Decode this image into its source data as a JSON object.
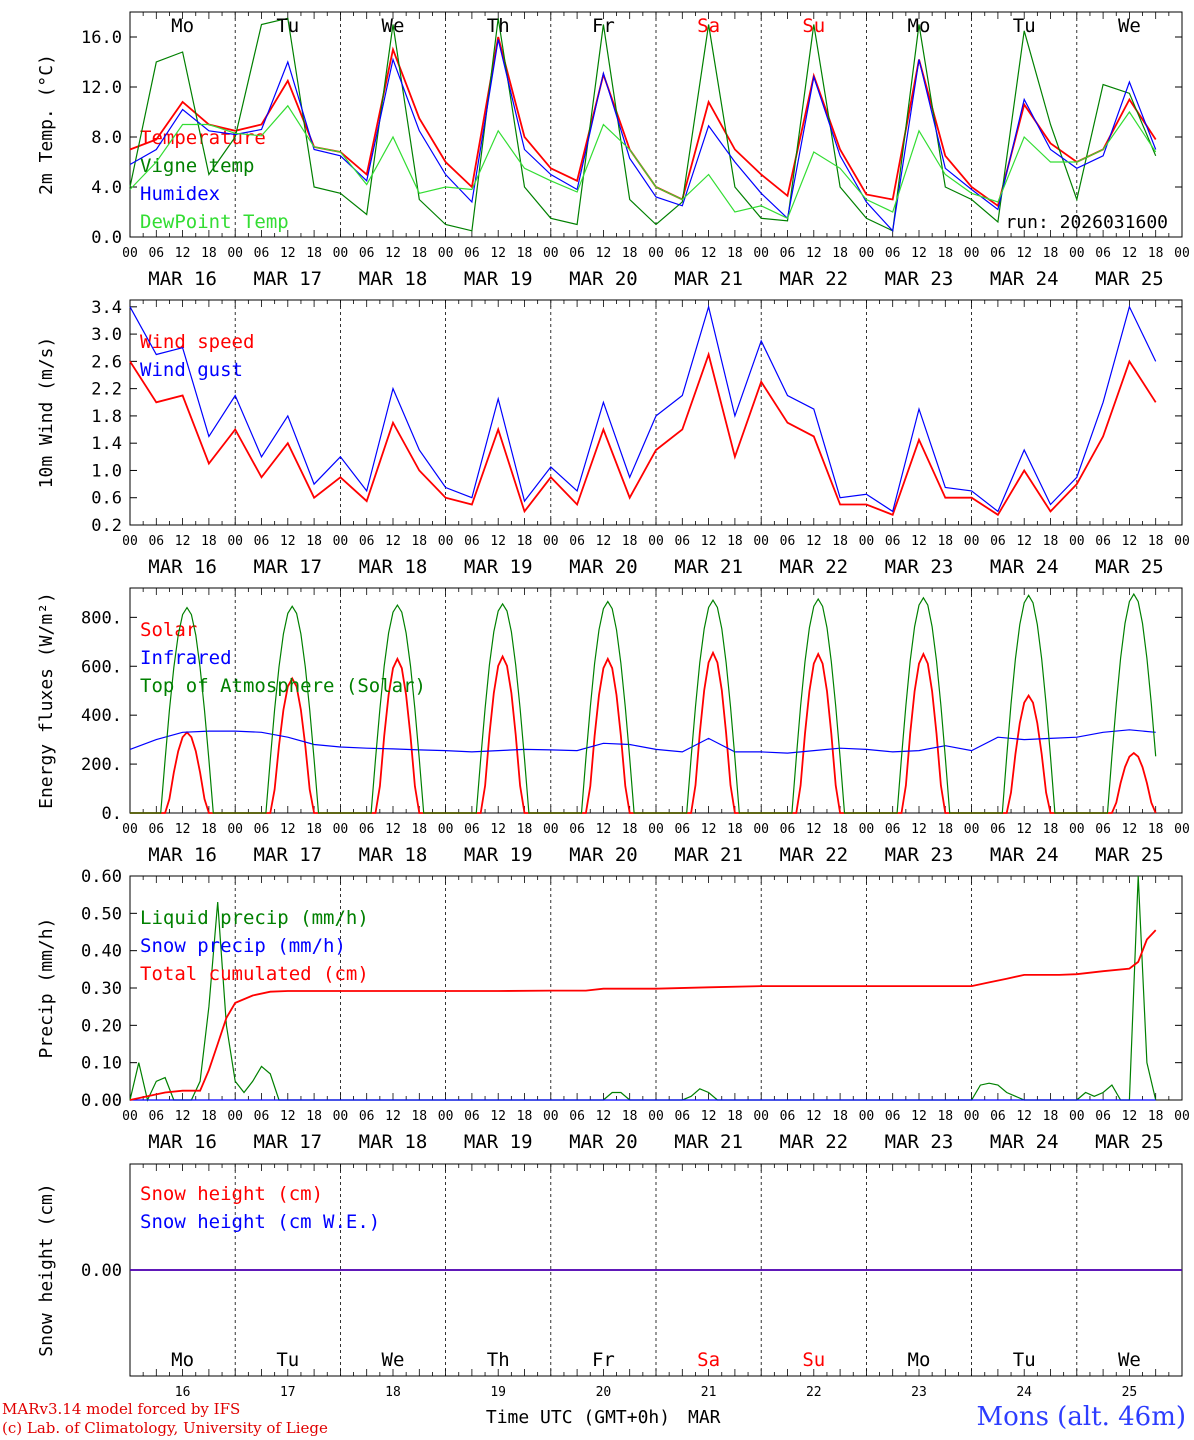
{
  "footer": {
    "credit_line1": "MARv3.14 model forced by IFS",
    "credit_line2": "(c) Lab. of Climatology, University of Liege",
    "xlabel": "Time UTC (GMT+0h)",
    "month": "MAR",
    "station": "Mons (alt. 46m)"
  },
  "run_label": "run: 2026031600",
  "days": [
    {
      "abbr": "Mo",
      "date": "MAR 16",
      "num": "16",
      "weekend": false
    },
    {
      "abbr": "Tu",
      "date": "MAR 17",
      "num": "17",
      "weekend": false
    },
    {
      "abbr": "We",
      "date": "MAR 18",
      "num": "18",
      "weekend": false
    },
    {
      "abbr": "Th",
      "date": "MAR 19",
      "num": "19",
      "weekend": false
    },
    {
      "abbr": "Fr",
      "date": "MAR 20",
      "num": "20",
      "weekend": false
    },
    {
      "abbr": "Sa",
      "date": "MAR 21",
      "num": "21",
      "weekend": true
    },
    {
      "abbr": "Su",
      "date": "MAR 22",
      "num": "22",
      "weekend": true
    },
    {
      "abbr": "Mo",
      "date": "MAR 23",
      "num": "23",
      "weekend": false
    },
    {
      "abbr": "Tu",
      "date": "MAR 24",
      "num": "24",
      "weekend": false
    },
    {
      "abbr": "We",
      "date": "MAR 25",
      "num": "25",
      "weekend": false
    }
  ],
  "hour_ticks": [
    "00",
    "06",
    "12",
    "18"
  ],
  "colors": {
    "red": "#ff0000",
    "green": "#008000",
    "blue": "#0000ff",
    "lightgreen": "#33dd33",
    "weekend": "#ff0000"
  },
  "chart_data": [
    {
      "id": "temp",
      "type": "line",
      "ylabel": "2m Temp. (°C)",
      "ylim": [
        0,
        18
      ],
      "yticks": [
        0,
        4,
        8,
        12,
        16
      ],
      "tick_labels": [
        "0.0",
        "4.0",
        "8.0",
        "12.0",
        "16.0"
      ],
      "x_unit": "hours since MAR 16 00 UTC",
      "legend_placement": "top-left",
      "series": [
        {
          "name": "Temperature",
          "color": "#ff0000",
          "x": [
            0,
            6,
            12,
            18,
            24,
            30,
            36,
            42,
            48,
            54,
            60,
            66,
            72,
            78,
            84,
            90,
            96,
            102,
            108,
            114,
            120,
            126,
            132,
            138,
            144,
            150,
            156,
            162,
            168,
            174,
            180,
            186,
            192,
            198,
            204,
            210,
            216,
            222,
            228,
            234
          ],
          "y": [
            7.0,
            7.8,
            10.8,
            9.0,
            8.5,
            9.0,
            12.5,
            7.2,
            6.8,
            5.0,
            15.0,
            9.5,
            6.0,
            4.0,
            16.0,
            8.0,
            5.5,
            4.5,
            13.0,
            7.0,
            4.0,
            3.0,
            10.8,
            7.0,
            5.0,
            3.3,
            12.9,
            7.0,
            3.4,
            3.0,
            14.2,
            6.5,
            4.0,
            2.5,
            10.6,
            7.5,
            6.0,
            7.0,
            11.0,
            7.8
          ]
        },
        {
          "name": "Vigne temp",
          "color": "#008000",
          "x": [
            0,
            6,
            12,
            18,
            24,
            30,
            36,
            42,
            48,
            54,
            60,
            66,
            72,
            78,
            84,
            90,
            96,
            102,
            108,
            114,
            120,
            126,
            132,
            138,
            144,
            150,
            156,
            162,
            168,
            174,
            180,
            186,
            192,
            198,
            204,
            210,
            216,
            222,
            228,
            234
          ],
          "y": [
            4.0,
            14.0,
            14.8,
            5.0,
            8.0,
            17.0,
            17.5,
            4.0,
            3.5,
            1.8,
            17.0,
            3.0,
            1.0,
            0.5,
            17.5,
            4.0,
            1.5,
            1.0,
            17.0,
            3.0,
            1.0,
            2.8,
            17.0,
            4.0,
            1.5,
            1.3,
            17.0,
            4.0,
            1.5,
            0.5,
            17.0,
            4.0,
            3.0,
            1.2,
            16.5,
            9.0,
            3.0,
            12.2,
            11.5,
            6.5
          ]
        },
        {
          "name": "Humidex",
          "color": "#0000ff",
          "x": [
            0,
            6,
            12,
            18,
            24,
            30,
            36,
            42,
            48,
            54,
            60,
            66,
            72,
            78,
            84,
            90,
            96,
            102,
            108,
            114,
            120,
            126,
            132,
            138,
            144,
            150,
            156,
            162,
            168,
            174,
            180,
            186,
            192,
            198,
            204,
            210,
            216,
            222,
            228,
            234
          ],
          "y": [
            5.8,
            7.0,
            10.2,
            8.5,
            8.2,
            8.6,
            14.0,
            7.0,
            6.5,
            4.5,
            14.2,
            8.5,
            5.0,
            2.8,
            15.8,
            7.0,
            5.0,
            3.8,
            13.1,
            6.3,
            3.2,
            2.5,
            8.9,
            6.0,
            3.5,
            1.5,
            12.8,
            6.5,
            2.8,
            0.5,
            14.2,
            5.5,
            3.8,
            2.2,
            11.0,
            7.0,
            5.5,
            6.5,
            12.4,
            7.0
          ]
        },
        {
          "name": "DewPoint Temp",
          "color": "#33dd33",
          "x": [
            0,
            6,
            12,
            18,
            24,
            30,
            36,
            42,
            48,
            54,
            60,
            66,
            72,
            78,
            84,
            90,
            96,
            102,
            108,
            114,
            120,
            126,
            132,
            138,
            144,
            150,
            156,
            162,
            168,
            174,
            180,
            186,
            192,
            198,
            204,
            210,
            216,
            222,
            228,
            234
          ],
          "y": [
            3.8,
            6.0,
            9.0,
            9.0,
            8.3,
            8.1,
            10.5,
            7.2,
            6.8,
            4.2,
            8.0,
            3.5,
            4.0,
            3.8,
            8.5,
            5.5,
            4.5,
            3.6,
            9.0,
            7.0,
            4.0,
            3.0,
            5.0,
            2.0,
            2.5,
            1.5,
            6.8,
            5.5,
            3.0,
            2.0,
            8.5,
            5.0,
            3.5,
            2.8,
            8.0,
            6.0,
            6.0,
            7.0,
            10.0,
            6.8
          ]
        }
      ]
    },
    {
      "id": "wind",
      "type": "line",
      "ylabel": "10m Wind (m/s)",
      "ylim": [
        0.2,
        3.5
      ],
      "yticks": [
        0.2,
        0.6,
        1.0,
        1.4,
        1.8,
        2.2,
        2.6,
        3.0,
        3.4
      ],
      "tick_labels": [
        "0.2",
        "0.6",
        "1.0",
        "1.4",
        "1.8",
        "2.2",
        "2.6",
        "3.0",
        "3.4"
      ],
      "legend_placement": "top-left",
      "series": [
        {
          "name": "Wind speed",
          "color": "#ff0000",
          "x": [
            0,
            6,
            12,
            18,
            24,
            30,
            36,
            42,
            48,
            54,
            60,
            66,
            72,
            78,
            84,
            90,
            96,
            102,
            108,
            114,
            120,
            126,
            132,
            138,
            144,
            150,
            156,
            162,
            168,
            174,
            180,
            186,
            192,
            198,
            204,
            210,
            216,
            222,
            228,
            234
          ],
          "y": [
            2.6,
            2.0,
            2.1,
            1.1,
            1.6,
            0.9,
            1.4,
            0.6,
            0.9,
            0.55,
            1.7,
            1.0,
            0.6,
            0.5,
            1.6,
            0.4,
            0.9,
            0.5,
            1.6,
            0.6,
            1.3,
            1.6,
            2.7,
            1.2,
            2.3,
            1.7,
            1.5,
            0.5,
            0.5,
            0.35,
            1.45,
            0.6,
            0.6,
            0.35,
            1.0,
            0.4,
            0.8,
            1.5,
            2.6,
            2.0
          ]
        },
        {
          "name": "Wind gust",
          "color": "#0000ff",
          "x": [
            0,
            6,
            12,
            18,
            24,
            30,
            36,
            42,
            48,
            54,
            60,
            66,
            72,
            78,
            84,
            90,
            96,
            102,
            108,
            114,
            120,
            126,
            132,
            138,
            144,
            150,
            156,
            162,
            168,
            174,
            180,
            186,
            192,
            198,
            204,
            210,
            216,
            222,
            228,
            234
          ],
          "y": [
            3.4,
            2.7,
            2.8,
            1.5,
            2.1,
            1.2,
            1.8,
            0.8,
            1.2,
            0.7,
            2.2,
            1.3,
            0.75,
            0.6,
            2.05,
            0.55,
            1.05,
            0.7,
            2.0,
            0.9,
            1.8,
            2.1,
            3.4,
            1.8,
            2.9,
            2.1,
            1.9,
            0.6,
            0.65,
            0.4,
            1.9,
            0.75,
            0.7,
            0.4,
            1.3,
            0.5,
            0.9,
            2.0,
            3.4,
            2.6
          ]
        }
      ]
    },
    {
      "id": "flux",
      "type": "line",
      "ylabel": "Energy fluxes (W/m²)",
      "ylim": [
        0,
        920
      ],
      "yticks": [
        0,
        200,
        400,
        600,
        800
      ],
      "tick_labels": [
        "0.",
        "200.",
        "400.",
        "600.",
        "800."
      ],
      "legend_placement": "top-left",
      "series": [
        {
          "name": "Solar",
          "color": "#ff0000",
          "peak_hour": 13,
          "daily_peaks": [
            330,
            550,
            630,
            640,
            630,
            655,
            650,
            650,
            480,
            245
          ]
        },
        {
          "name": "Infrared",
          "color": "#0000ff",
          "x": [
            0,
            6,
            12,
            18,
            24,
            30,
            36,
            42,
            48,
            54,
            60,
            66,
            72,
            78,
            84,
            90,
            96,
            102,
            108,
            114,
            120,
            126,
            132,
            138,
            144,
            150,
            156,
            162,
            168,
            174,
            180,
            186,
            192,
            198,
            204,
            210,
            216,
            222,
            228,
            234
          ],
          "y": [
            260,
            300,
            330,
            335,
            335,
            330,
            310,
            280,
            270,
            265,
            262,
            258,
            255,
            250,
            255,
            260,
            258,
            255,
            285,
            280,
            260,
            250,
            305,
            250,
            250,
            245,
            255,
            265,
            260,
            250,
            255,
            275,
            255,
            310,
            300,
            305,
            310,
            330,
            340,
            330
          ]
        },
        {
          "name": "Top of Atmosphere (Solar)",
          "color": "#008000",
          "peak_hour": 13,
          "daily_peaks": [
            840,
            845,
            850,
            855,
            865,
            870,
            875,
            880,
            890,
            895
          ]
        }
      ]
    },
    {
      "id": "precip",
      "type": "line",
      "ylabel": "Precip (mm/h)",
      "ylim": [
        0,
        0.6
      ],
      "yticks": [
        0,
        0.1,
        0.2,
        0.3,
        0.4,
        0.5,
        0.6
      ],
      "tick_labels": [
        "0.00",
        "0.10",
        "0.20",
        "0.30",
        "0.40",
        "0.50",
        "0.60"
      ],
      "legend_placement": "top-left",
      "series": [
        {
          "name": "Liquid precip (mm/h)",
          "color": "#008000",
          "x": [
            0,
            2,
            4,
            6,
            8,
            10,
            12,
            14,
            16,
            18,
            20,
            22,
            24,
            26,
            28,
            30,
            32,
            34,
            36,
            48,
            108,
            110,
            112,
            114,
            116,
            126,
            128,
            130,
            132,
            134,
            136,
            192,
            194,
            196,
            198,
            200,
            204,
            206,
            216,
            218,
            220,
            222,
            224,
            226,
            228,
            230,
            232,
            234
          ],
          "y": [
            0,
            0.1,
            0,
            0.05,
            0.06,
            0,
            0,
            0,
            0.05,
            0.25,
            0.53,
            0.2,
            0.05,
            0.02,
            0.05,
            0.09,
            0.07,
            0,
            0,
            0,
            0,
            0.02,
            0.02,
            0,
            0,
            0,
            0.01,
            0.03,
            0.02,
            0,
            0,
            0,
            0.04,
            0.045,
            0.04,
            0.02,
            0,
            0,
            0,
            0.02,
            0.01,
            0.02,
            0.04,
            0,
            0,
            0.6,
            0.1,
            0
          ]
        },
        {
          "name": "Snow precip (mm/h)",
          "color": "#0000ff",
          "x": [
            0,
            234
          ],
          "y": [
            0,
            0
          ]
        },
        {
          "name": "Total cumulated (cm)",
          "color": "#ff0000",
          "x": [
            0,
            4,
            8,
            12,
            16,
            18,
            20,
            22,
            24,
            28,
            32,
            36,
            48,
            60,
            72,
            84,
            96,
            104,
            108,
            120,
            132,
            144,
            156,
            168,
            180,
            192,
            196,
            200,
            204,
            212,
            216,
            222,
            228,
            230,
            232,
            234
          ],
          "y": [
            0,
            0.01,
            0.02,
            0.025,
            0.025,
            0.08,
            0.15,
            0.22,
            0.26,
            0.28,
            0.29,
            0.292,
            0.292,
            0.292,
            0.292,
            0.292,
            0.293,
            0.293,
            0.298,
            0.298,
            0.302,
            0.305,
            0.305,
            0.305,
            0.305,
            0.305,
            0.315,
            0.325,
            0.335,
            0.335,
            0.337,
            0.345,
            0.352,
            0.37,
            0.43,
            0.455
          ]
        }
      ]
    },
    {
      "id": "snow",
      "type": "line",
      "ylabel": "Snow height (cm)",
      "ylim": [
        -1,
        1
      ],
      "yticks": [
        0
      ],
      "tick_labels": [
        "0.00"
      ],
      "legend_placement": "top-left",
      "series": [
        {
          "name": "Snow height (cm)",
          "color": "#ff0000",
          "x": [
            0,
            240
          ],
          "y": [
            0,
            0
          ]
        },
        {
          "name": "Snow height (cm W.E.)",
          "color": "#0000ff",
          "x": [
            0,
            240
          ],
          "y": [
            0,
            0
          ]
        }
      ]
    }
  ]
}
